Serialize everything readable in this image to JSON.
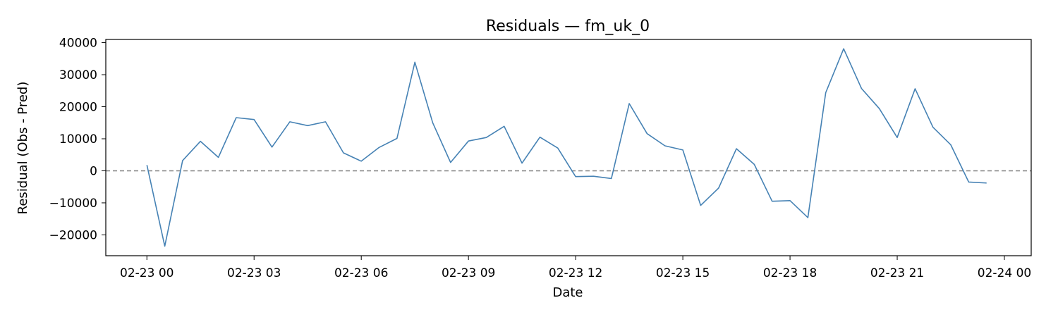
{
  "chart_data": {
    "type": "line",
    "title": "Residuals — fm_uk_0",
    "xlabel": "Date",
    "ylabel": "Residual (Obs - Pred)",
    "x_ticks": [
      "02-23 00",
      "02-23 03",
      "02-23 06",
      "02-23 09",
      "02-23 12",
      "02-23 15",
      "02-23 18",
      "02-23 21",
      "02-24 00"
    ],
    "x_tick_hours": [
      0,
      3,
      6,
      9,
      12,
      15,
      18,
      21,
      24
    ],
    "y_ticks": [
      -20000,
      -10000,
      0,
      10000,
      20000,
      30000,
      40000
    ],
    "xlim": [
      "02-22 22:51",
      "02-24 00:45"
    ],
    "ylim": [
      -26500,
      41000
    ],
    "grid": false,
    "reference_line": {
      "y": 0,
      "style": "dashed",
      "color": "#808080"
    },
    "series": [
      {
        "color": "#4682b4",
        "x": [
          "02-23 00:00",
          "02-23 00:30",
          "02-23 01:00",
          "02-23 01:30",
          "02-23 02:00",
          "02-23 02:30",
          "02-23 03:00",
          "02-23 03:30",
          "02-23 04:00",
          "02-23 04:30",
          "02-23 05:00",
          "02-23 05:30",
          "02-23 06:00",
          "02-23 06:30",
          "02-23 07:00",
          "02-23 07:30",
          "02-23 08:00",
          "02-23 08:30",
          "02-23 09:00",
          "02-23 09:30",
          "02-23 10:00",
          "02-23 10:30",
          "02-23 11:00",
          "02-23 11:30",
          "02-23 12:00",
          "02-23 12:30",
          "02-23 13:00",
          "02-23 13:30",
          "02-23 14:00",
          "02-23 14:30",
          "02-23 15:00",
          "02-23 15:30",
          "02-23 16:00",
          "02-23 16:30",
          "02-23 17:00",
          "02-23 17:30",
          "02-23 18:00",
          "02-23 18:30",
          "02-23 19:00",
          "02-23 19:30",
          "02-23 20:00",
          "02-23 20:30",
          "02-23 21:00",
          "02-23 21:30",
          "02-23 22:00",
          "02-23 22:30",
          "02-23 23:00",
          "02-23 23:30"
        ],
        "values": [
          1800,
          -23500,
          3200,
          9200,
          4200,
          16600,
          16000,
          7400,
          15300,
          14100,
          15300,
          5600,
          3000,
          7300,
          10100,
          33900,
          15000,
          2600,
          9300,
          10400,
          13900,
          2400,
          10500,
          7100,
          -1800,
          -1700,
          -2400,
          21000,
          11600,
          7800,
          6500,
          -10800,
          -5400,
          6900,
          2000,
          -9500,
          -9300,
          -14600,
          24400,
          38100,
          25700,
          19400,
          10400,
          25600,
          13600,
          8100,
          -3500,
          -3800
        ]
      }
    ]
  }
}
